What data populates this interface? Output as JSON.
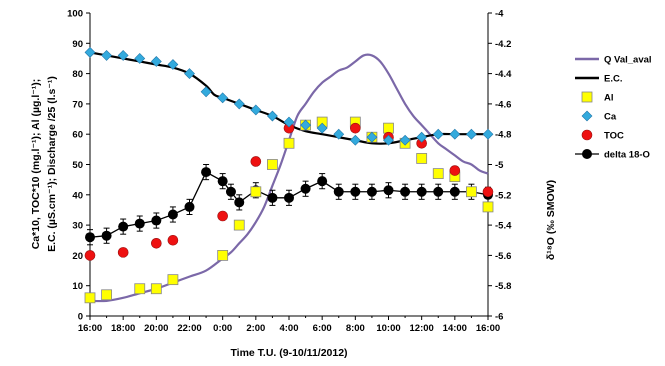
{
  "chart_data": {
    "type": "line",
    "xlabel": "Time T.U. (9-10/11/2012)",
    "ylabel_left_lines": [
      "Ca*10, TOC*10 (mg.l⁻¹); Al (µg.l⁻¹);",
      "E.C. (µS.cm⁻¹); Discharge /25 (l.s⁻¹)"
    ],
    "ylabel_right": "δ¹⁸O (‰ SMOW)",
    "x_tick_labels": [
      "16:00",
      "18:00",
      "20:00",
      "22:00",
      "0:00",
      "2:00",
      "4:00",
      "6:00",
      "8:00",
      "10:00",
      "12:00",
      "14:00",
      "16:00"
    ],
    "xlim": [
      0,
      24
    ],
    "ylim_left": [
      0,
      100
    ],
    "left_ticks": [
      0,
      10,
      20,
      30,
      40,
      50,
      60,
      70,
      80,
      90,
      100
    ],
    "ylim_right": [
      -6,
      -4
    ],
    "right_ticks": [
      -6,
      -5.8,
      -5.6,
      -5.4,
      -5.2,
      -5,
      -4.8,
      -4.6,
      -4.4,
      -4.2,
      -4
    ],
    "right_tick_labels": [
      "-6",
      "-5.8",
      "-5.6",
      "-5.4",
      "-5.2",
      "-5",
      "-4.8",
      "-4.6",
      "-4.4",
      "-4.2",
      "-4"
    ],
    "grid": false,
    "legend_position": "right",
    "series": [
      {
        "name": "Q Val_aval",
        "kind": "line",
        "axis": "left",
        "color": "#7b68a8",
        "x": [
          0,
          1,
          2,
          3,
          4,
          5,
          6,
          7,
          8,
          8.5,
          9,
          9.5,
          10,
          10.5,
          11,
          11.5,
          12,
          12.5,
          13,
          13.5,
          14,
          14.5,
          15,
          15.5,
          16,
          16.5,
          17,
          17.5,
          18,
          18.5,
          19,
          19.5,
          20,
          20.5,
          21,
          21.5,
          22,
          22.5,
          23,
          23.5,
          24
        ],
        "y": [
          5,
          5,
          6,
          7.5,
          9,
          11,
          13,
          15,
          19,
          21,
          24,
          27,
          31,
          36,
          43,
          50,
          58,
          66,
          70,
          74,
          77,
          79,
          81,
          82,
          84,
          86,
          86,
          84,
          80,
          75,
          70,
          66,
          63,
          60,
          57,
          55,
          53,
          51,
          50,
          48,
          47
        ]
      },
      {
        "name": "E.C.",
        "kind": "line",
        "axis": "left",
        "color": "#000000",
        "x": [
          0,
          1,
          2,
          3,
          4,
          5,
          6,
          7,
          7.5,
          8,
          9,
          10,
          11,
          12,
          13,
          14,
          15,
          16,
          17,
          18,
          19,
          20,
          21,
          22,
          23,
          24
        ],
        "y": [
          87,
          86,
          85,
          84,
          83,
          82,
          80,
          76,
          73,
          72,
          70,
          68,
          66,
          63,
          61,
          60,
          59,
          58,
          57,
          57,
          58,
          59,
          60,
          60,
          60,
          60
        ]
      },
      {
        "name": "Al",
        "kind": "square",
        "axis": "left",
        "color": "#ffff00",
        "x": [
          0,
          1,
          3,
          4,
          5,
          8,
          9,
          10,
          11,
          12,
          13,
          14,
          16,
          17,
          18,
          19,
          20,
          21,
          22,
          23,
          24
        ],
        "y": [
          6,
          7,
          9,
          9,
          12,
          20,
          30,
          41,
          50,
          57,
          63,
          64,
          64,
          59,
          62,
          57,
          52,
          47,
          46,
          41,
          36
        ]
      },
      {
        "name": "Ca",
        "kind": "diamond",
        "axis": "left",
        "color": "#33aadd",
        "x": [
          0,
          1,
          2,
          3,
          4,
          5,
          6,
          7,
          8,
          9,
          10,
          11,
          12,
          13,
          14,
          15,
          16,
          17,
          18,
          19,
          20,
          21,
          22,
          23,
          24
        ],
        "y": [
          87,
          86,
          86,
          85,
          84,
          83,
          80,
          74,
          72,
          70,
          68,
          66,
          64,
          63,
          62,
          60,
          58,
          59,
          58,
          58,
          59,
          60,
          60,
          60,
          60
        ]
      },
      {
        "name": "TOC",
        "kind": "circle",
        "axis": "left",
        "color": "#ee1111",
        "x": [
          0,
          2,
          4,
          5,
          8,
          10,
          12,
          16,
          18,
          20,
          22,
          24
        ],
        "y": [
          20,
          21,
          24,
          25,
          33,
          51,
          62,
          62,
          59,
          57,
          48,
          41
        ]
      },
      {
        "name": "delta 18-O",
        "kind": "dot-line",
        "axis": "right",
        "color": "#000000",
        "x": [
          0,
          1,
          2,
          3,
          4,
          5,
          6,
          7,
          8,
          8.5,
          9,
          10,
          11,
          12,
          13,
          14,
          15,
          16,
          17,
          18,
          19,
          20,
          21,
          22,
          23,
          24
        ],
        "y": [
          -5.48,
          -5.47,
          -5.41,
          -5.39,
          -5.37,
          -5.33,
          -5.28,
          -5.05,
          -5.11,
          -5.18,
          -5.25,
          -5.17,
          -5.22,
          -5.22,
          -5.16,
          -5.11,
          -5.18,
          -5.18,
          -5.18,
          -5.17,
          -5.18,
          -5.18,
          -5.18,
          -5.18,
          -5.18,
          -5.2
        ],
        "error": 0.05
      }
    ]
  }
}
